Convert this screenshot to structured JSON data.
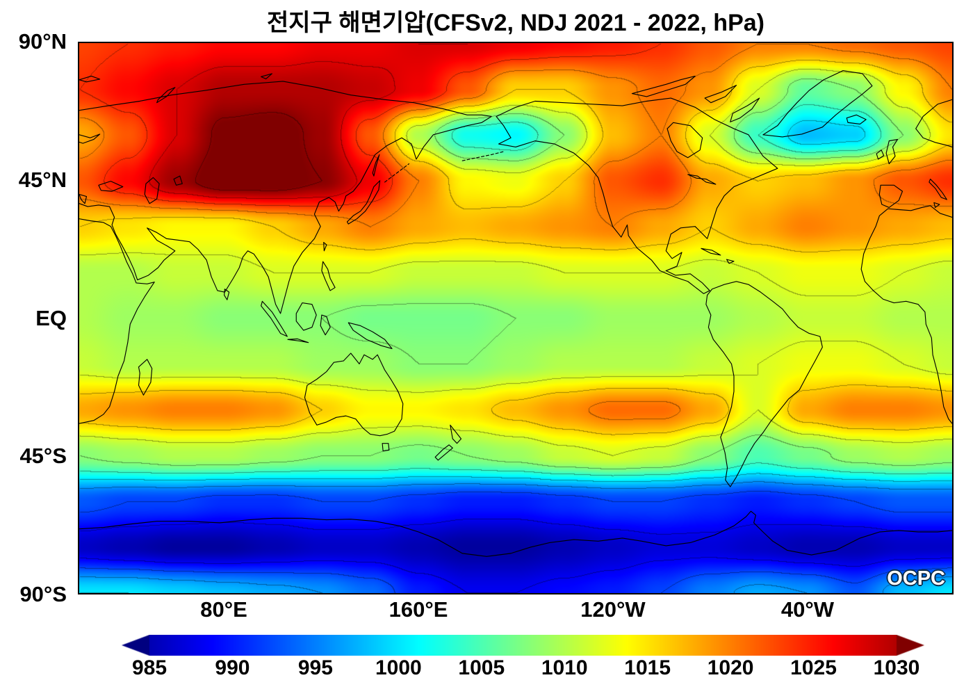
{
  "title": "전지구 해면기압(CFSv2, NDJ 2021 - 2022, hPa)",
  "watermark": "OCPC",
  "chart_data": {
    "type": "heatmap",
    "title": "전지구 해면기압(CFSv2, NDJ 2021 - 2022, hPa)",
    "dataset": "CFSv2",
    "season": "NDJ 2021 - 2022",
    "units": "hPa",
    "colormap": "jet",
    "value_range": [
      982.5,
      1032.5
    ],
    "contour_interval": 4,
    "colorbar_ticks": [
      985,
      990,
      995,
      1000,
      1005,
      1010,
      1015,
      1020,
      1025,
      1030
    ],
    "x_axis": {
      "lon_range": [
        20,
        380
      ],
      "ticks": [
        {
          "label": "80°E",
          "lon": 80
        },
        {
          "label": "160°E",
          "lon": 160
        },
        {
          "label": "120°W",
          "lon": 240
        },
        {
          "label": "40°W",
          "lon": 320
        }
      ]
    },
    "y_axis": {
      "lat_range": [
        -90,
        90
      ],
      "ticks": [
        {
          "label": "90°N",
          "lat": 90
        },
        {
          "label": "45°N",
          "lat": 45
        },
        {
          "label": "EQ",
          "lat": 0
        },
        {
          "label": "45°S",
          "lat": -45
        },
        {
          "label": "90°S",
          "lat": -90
        }
      ]
    },
    "grid": {
      "lons": [
        20,
        40,
        60,
        80,
        100,
        120,
        140,
        160,
        180,
        200,
        220,
        240,
        260,
        280,
        300,
        320,
        340,
        360,
        380
      ],
      "lats": [
        90,
        75,
        60,
        45,
        30,
        15,
        0,
        -15,
        -30,
        -45,
        -60,
        -75,
        -90
      ],
      "values": [
        [
          1023,
          1024,
          1025,
          1026,
          1026,
          1027,
          1027,
          1028,
          1028,
          1027,
          1026,
          1025,
          1024,
          1022,
          1020,
          1020,
          1021,
          1022,
          1023
        ],
        [
          1024,
          1026,
          1028,
          1030,
          1030,
          1030,
          1029,
          1027,
          1022,
          1016,
          1016,
          1019,
          1021,
          1019,
          1012,
          1006,
          1008,
          1014,
          1020
        ],
        [
          1018,
          1022,
          1028,
          1033,
          1034,
          1031,
          1022,
          1010,
          1002,
          1001,
          1008,
          1017,
          1020,
          1012,
          1004,
          998,
          999,
          1008,
          1015
        ],
        [
          1022,
          1026,
          1031,
          1034,
          1034,
          1032,
          1027,
          1020,
          1014,
          1013,
          1016,
          1022,
          1024,
          1018,
          1016,
          1017,
          1019,
          1022,
          1024
        ],
        [
          1016,
          1015,
          1014,
          1014,
          1016,
          1018,
          1020,
          1018,
          1017,
          1018,
          1019,
          1020,
          1018,
          1016,
          1018,
          1020,
          1019,
          1018,
          1017
        ],
        [
          1010,
          1010,
          1011,
          1011,
          1012,
          1012,
          1012,
          1011,
          1011,
          1011,
          1012,
          1012,
          1012,
          1011,
          1012,
          1013,
          1013,
          1012,
          1011
        ],
        [
          1010,
          1009,
          1009,
          1008,
          1008,
          1008,
          1007,
          1007,
          1007,
          1008,
          1008,
          1009,
          1009,
          1009,
          1010,
          1011,
          1011,
          1010,
          1010
        ],
        [
          1011,
          1010,
          1010,
          1010,
          1010,
          1009,
          1009,
          1008,
          1008,
          1009,
          1010,
          1010,
          1010,
          1011,
          1012,
          1013,
          1013,
          1012,
          1011
        ],
        [
          1018,
          1019,
          1020,
          1020,
          1019,
          1016,
          1014,
          1014,
          1015,
          1017,
          1019,
          1021,
          1021,
          1018,
          1012,
          1018,
          1020,
          1020,
          1019
        ],
        [
          1008,
          1009,
          1010,
          1010,
          1009,
          1008,
          1008,
          1007,
          1008,
          1009,
          1011,
          1012,
          1011,
          1008,
          1005,
          1007,
          1009,
          1010,
          1009
        ],
        [
          993,
          992,
          992,
          991,
          991,
          992,
          992,
          991,
          990,
          990,
          991,
          992,
          992,
          991,
          990,
          991,
          992,
          993,
          993
        ],
        [
          986,
          985,
          984,
          984,
          985,
          986,
          986,
          985,
          984,
          984,
          985,
          986,
          987,
          987,
          986,
          985,
          985,
          986,
          986
        ],
        [
          1000,
          1000,
          999,
          998,
          997,
          996,
          994,
          990,
          988,
          988,
          989,
          990,
          992,
          995,
          997,
          996,
          993,
          998,
          1000
        ]
      ]
    }
  }
}
